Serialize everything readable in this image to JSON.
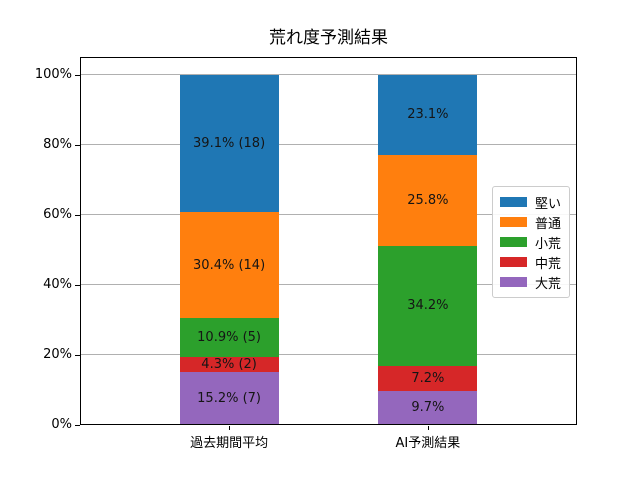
{
  "chart_data": {
    "type": "stacked_bar",
    "title": "荒れ度予測結果",
    "categories": [
      "過去期間平均",
      "AI予測結果"
    ],
    "series": [
      {
        "name": "堅い",
        "color": "#1f77b4",
        "values": [
          39.1,
          23.1
        ],
        "bar_labels": [
          "39.1% (18)",
          "23.1%"
        ]
      },
      {
        "name": "普通",
        "color": "#ff7f0e",
        "values": [
          30.4,
          25.8
        ],
        "bar_labels": [
          "30.4% (14)",
          "25.8%"
        ]
      },
      {
        "name": "小荒",
        "color": "#2ca02c",
        "values": [
          10.9,
          34.2
        ],
        "bar_labels": [
          "10.9% (5)",
          "34.2%"
        ]
      },
      {
        "name": "中荒",
        "color": "#d62728",
        "values": [
          4.3,
          7.2
        ],
        "bar_labels": [
          "4.3% (2)",
          "7.2%"
        ]
      },
      {
        "name": "大荒",
        "color": "#9467bd",
        "values": [
          15.2,
          9.7
        ],
        "bar_labels": [
          "15.2% (7)",
          "9.7%"
        ]
      }
    ],
    "stacking": "first_series_on_top",
    "unit": "%",
    "xlabel": "",
    "ylabel": "",
    "ylim": [
      0,
      105
    ],
    "yticks": [
      {
        "label": "0%",
        "value": 0
      },
      {
        "label": "20%",
        "value": 20
      },
      {
        "label": "40%",
        "value": 40
      },
      {
        "label": "60%",
        "value": 60
      },
      {
        "label": "80%",
        "value": 80
      },
      {
        "label": "100%",
        "value": 100
      }
    ],
    "grid": true,
    "legend_position": "center right"
  },
  "colors": {
    "background": "#ffffff",
    "spine": "#000000",
    "grid": "#b0b0b0",
    "tick_text": "#000000",
    "bar_label_text": "#151515",
    "legend_border": "#cccccc"
  }
}
